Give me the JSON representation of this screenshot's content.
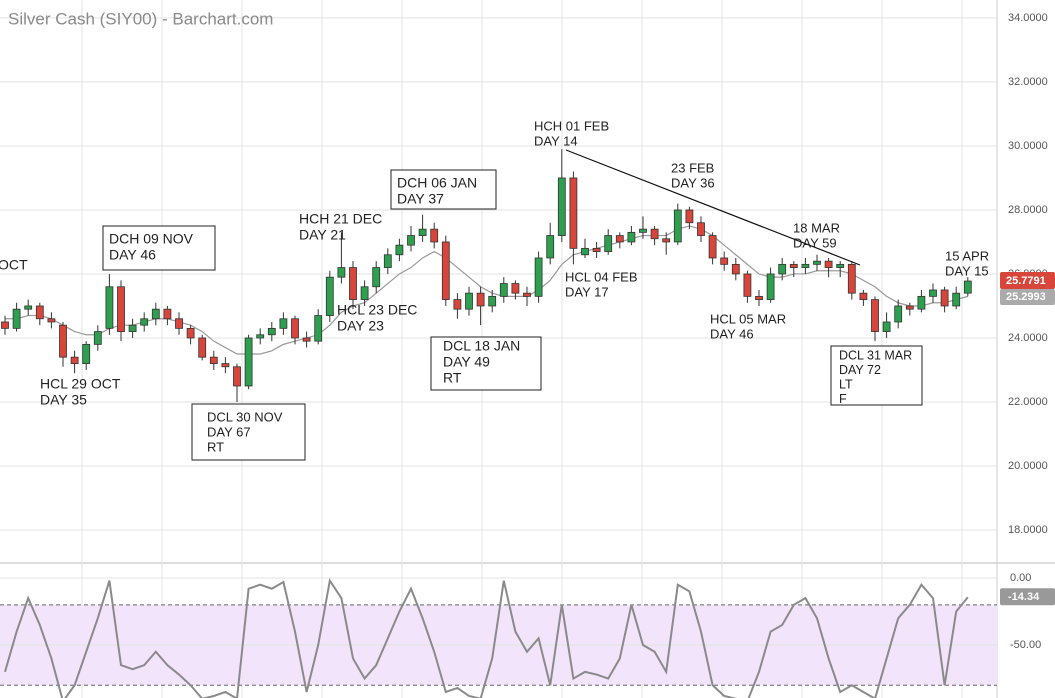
{
  "chart_data": [
    {
      "type": "candlestick",
      "title": "Silver Cash (SIY00) - Barchart.com",
      "ylim": [
        17,
        34.56
      ],
      "yticks": [
        {
          "value": 18,
          "label": "18.0000"
        },
        {
          "value": 20,
          "label": "20.0000"
        },
        {
          "value": 22,
          "label": "22.0000"
        },
        {
          "value": 24,
          "label": "24.0000"
        },
        {
          "value": 26,
          "label": "26.0000"
        },
        {
          "value": 28,
          "label": "28.0000"
        },
        {
          "value": 30,
          "label": "30.0000"
        },
        {
          "value": 32,
          "label": "32.0000"
        },
        {
          "value": 34,
          "label": "34.0000"
        }
      ],
      "grid": true,
      "up_color": "#2e9e4f",
      "down_color": "#d8453b",
      "ohlc": [
        [
          24.5,
          24.7,
          24.1,
          24.3
        ],
        [
          24.3,
          25.1,
          24.2,
          24.9
        ],
        [
          24.9,
          25.2,
          24.7,
          25.0
        ],
        [
          25.0,
          25.1,
          24.4,
          24.6
        ],
        [
          24.6,
          24.8,
          24.3,
          24.5
        ],
        [
          24.4,
          24.5,
          23.1,
          23.4
        ],
        [
          23.4,
          23.6,
          22.9,
          23.2
        ],
        [
          23.2,
          23.9,
          23.0,
          23.8
        ],
        [
          23.8,
          24.4,
          23.6,
          24.2
        ],
        [
          24.3,
          26.0,
          24.1,
          25.6
        ],
        [
          25.6,
          25.8,
          23.9,
          24.2
        ],
        [
          24.2,
          24.6,
          24.0,
          24.4
        ],
        [
          24.4,
          24.8,
          24.2,
          24.6
        ],
        [
          24.6,
          25.1,
          24.4,
          24.9
        ],
        [
          24.9,
          25.0,
          24.4,
          24.6
        ],
        [
          24.6,
          24.8,
          24.1,
          24.3
        ],
        [
          24.3,
          24.4,
          23.8,
          24.0
        ],
        [
          24.0,
          24.1,
          23.3,
          23.4
        ],
        [
          23.4,
          23.6,
          23.0,
          23.2
        ],
        [
          23.2,
          23.4,
          22.9,
          23.1
        ],
        [
          23.1,
          23.2,
          22.0,
          22.5
        ],
        [
          22.5,
          24.1,
          22.4,
          24.0
        ],
        [
          24.0,
          24.3,
          23.8,
          24.1
        ],
        [
          24.1,
          24.5,
          23.9,
          24.3
        ],
        [
          24.3,
          24.8,
          24.1,
          24.6
        ],
        [
          24.6,
          24.7,
          23.8,
          24.0
        ],
        [
          24.0,
          24.2,
          23.7,
          23.9
        ],
        [
          23.9,
          24.9,
          23.8,
          24.7
        ],
        [
          24.7,
          26.1,
          24.5,
          25.9
        ],
        [
          25.9,
          27.3,
          25.7,
          26.2
        ],
        [
          26.2,
          26.4,
          24.9,
          25.2
        ],
        [
          25.2,
          25.8,
          25.0,
          25.6
        ],
        [
          25.6,
          26.4,
          25.4,
          26.2
        ],
        [
          26.2,
          26.8,
          26.0,
          26.6
        ],
        [
          26.6,
          27.1,
          26.4,
          26.9
        ],
        [
          26.9,
          27.5,
          26.7,
          27.2
        ],
        [
          27.2,
          27.85,
          27.0,
          27.4
        ],
        [
          27.4,
          27.6,
          26.8,
          27.0
        ],
        [
          27.0,
          27.2,
          25.0,
          25.2
        ],
        [
          25.2,
          25.4,
          24.6,
          24.9
        ],
        [
          24.9,
          25.6,
          24.7,
          25.4
        ],
        [
          25.4,
          25.6,
          24.4,
          25.0
        ],
        [
          25.0,
          25.5,
          24.8,
          25.3
        ],
        [
          25.3,
          25.9,
          25.1,
          25.7
        ],
        [
          25.7,
          25.8,
          25.2,
          25.4
        ],
        [
          25.4,
          25.6,
          25.0,
          25.3
        ],
        [
          25.3,
          26.7,
          25.1,
          26.5
        ],
        [
          26.5,
          27.6,
          26.3,
          27.2
        ],
        [
          27.2,
          29.9,
          27.0,
          29.0
        ],
        [
          29.0,
          29.2,
          26.3,
          26.8
        ],
        [
          26.6,
          27.1,
          26.5,
          26.8
        ],
        [
          26.8,
          27.0,
          26.5,
          26.7
        ],
        [
          26.7,
          27.4,
          26.6,
          27.2
        ],
        [
          27.2,
          27.3,
          26.8,
          27.0
        ],
        [
          27.0,
          27.5,
          26.9,
          27.3
        ],
        [
          27.3,
          27.8,
          27.1,
          27.4
        ],
        [
          27.4,
          27.5,
          26.9,
          27.1
        ],
        [
          27.1,
          27.3,
          26.6,
          27.0
        ],
        [
          27.0,
          28.2,
          26.9,
          28.0
        ],
        [
          28.0,
          28.1,
          27.4,
          27.6
        ],
        [
          27.6,
          27.8,
          27.0,
          27.2
        ],
        [
          27.2,
          27.3,
          26.3,
          26.5
        ],
        [
          26.5,
          26.7,
          26.1,
          26.3
        ],
        [
          26.3,
          26.5,
          25.8,
          26.0
        ],
        [
          26.0,
          26.1,
          25.1,
          25.3
        ],
        [
          25.3,
          25.5,
          25.0,
          25.2
        ],
        [
          25.2,
          26.2,
          25.1,
          26.0
        ],
        [
          26.0,
          26.5,
          25.8,
          26.3
        ],
        [
          26.3,
          26.4,
          25.9,
          26.2
        ],
        [
          26.2,
          26.5,
          26.0,
          26.3
        ],
        [
          26.3,
          26.6,
          26.1,
          26.4
        ],
        [
          26.4,
          26.5,
          25.9,
          26.2
        ],
        [
          26.2,
          26.4,
          25.9,
          26.3
        ],
        [
          26.3,
          26.4,
          25.2,
          25.4
        ],
        [
          25.4,
          25.5,
          25.0,
          25.2
        ],
        [
          25.2,
          25.3,
          23.9,
          24.2
        ],
        [
          24.2,
          24.8,
          24.0,
          24.5
        ],
        [
          24.5,
          25.2,
          24.3,
          25.0
        ],
        [
          25.0,
          25.1,
          24.7,
          24.9
        ],
        [
          24.9,
          25.5,
          24.8,
          25.3
        ],
        [
          25.3,
          25.7,
          25.1,
          25.5
        ],
        [
          25.5,
          25.6,
          24.8,
          25.0
        ],
        [
          25.0,
          25.6,
          24.9,
          25.4
        ],
        [
          25.4,
          25.9,
          25.3,
          25.7791
        ]
      ],
      "ma": {
        "color": "#999999",
        "values": [
          24.6,
          24.6,
          24.7,
          24.7,
          24.6,
          24.4,
          24.2,
          24.1,
          24.1,
          24.3,
          24.4,
          24.4,
          24.5,
          24.6,
          24.6,
          24.5,
          24.4,
          24.2,
          23.9,
          23.7,
          23.5,
          23.5,
          23.5,
          23.6,
          23.8,
          23.9,
          24.0,
          24.1,
          24.4,
          24.8,
          25.0,
          25.1,
          25.4,
          25.7,
          26.0,
          26.2,
          26.5,
          26.7,
          26.5,
          26.2,
          25.9,
          25.6,
          25.4,
          25.3,
          25.3,
          25.3,
          25.5,
          25.8,
          26.3,
          26.6,
          26.7,
          26.8,
          26.9,
          27.0,
          27.1,
          27.2,
          27.2,
          27.2,
          27.4,
          27.5,
          27.4,
          27.2,
          26.9,
          26.6,
          26.3,
          26.0,
          25.9,
          25.9,
          26.0,
          26.0,
          26.1,
          26.1,
          26.1,
          26.0,
          25.8,
          25.6,
          25.3,
          25.1,
          25.0,
          25.0,
          25.1,
          25.1,
          25.2,
          25.2993
        ]
      },
      "annotations": [
        [
          "OCT"
        ],
        [
          "HCL 29 OCT",
          "DAY 35"
        ],
        [
          "DCH 09 NOV",
          "DAY 46"
        ],
        [
          "DCL 30 NOV",
          "DAY 67",
          "RT"
        ],
        [
          "HCH 21 DEC",
          "DAY 21"
        ],
        [
          "HCL 23 DEC",
          "DAY 23"
        ],
        [
          "DCH 06 JAN",
          "DAY 37"
        ],
        [
          "DCL 18 JAN",
          "DAY 49",
          "RT"
        ],
        [
          "HCH 01 FEB",
          "DAY 14"
        ],
        [
          "HCL 04 FEB",
          "DAY 17"
        ],
        [
          "23 FEB",
          "DAY 36"
        ],
        [
          "18 MAR",
          "DAY 59"
        ],
        [
          "HCL 05 MAR",
          "DAY 46"
        ],
        [
          "DCL 31 MAR",
          "DAY 72",
          "LT",
          "F"
        ],
        [
          "15 APR",
          "DAY 15"
        ]
      ]
    },
    {
      "type": "line",
      "color": "#8a8a8a",
      "ylim": [
        -89.5,
        9.7
      ],
      "yticks": [
        {
          "value": 0,
          "label": "0.00"
        },
        {
          "value": -50,
          "label": "-50.00"
        }
      ],
      "levels": [
        -20,
        -80
      ],
      "band_color": "#f1e4fb",
      "values": [
        -70,
        -40,
        -15,
        -35,
        -60,
        -92,
        -80,
        -55,
        -30,
        -2,
        -65,
        -68,
        -65,
        -55,
        -65,
        -72,
        -80,
        -90,
        -88,
        -85,
        -90,
        -8,
        -5,
        -8,
        -3,
        -40,
        -85,
        -50,
        -2,
        -15,
        -60,
        -75,
        -65,
        -45,
        -25,
        -8,
        -30,
        -55,
        -85,
        -82,
        -88,
        -90,
        -60,
        -2,
        -40,
        -55,
        -45,
        -80,
        -20,
        -75,
        -70,
        -72,
        -75,
        -60,
        -20,
        -50,
        -55,
        -70,
        -5,
        -10,
        -40,
        -80,
        -88,
        -90,
        -92,
        -70,
        -40,
        -35,
        -20,
        -15,
        -30,
        -60,
        -85,
        -80,
        -85,
        -90,
        -60,
        -30,
        -20,
        -5,
        -15,
        -80,
        -25,
        -14.34
      ]
    }
  ]
}
